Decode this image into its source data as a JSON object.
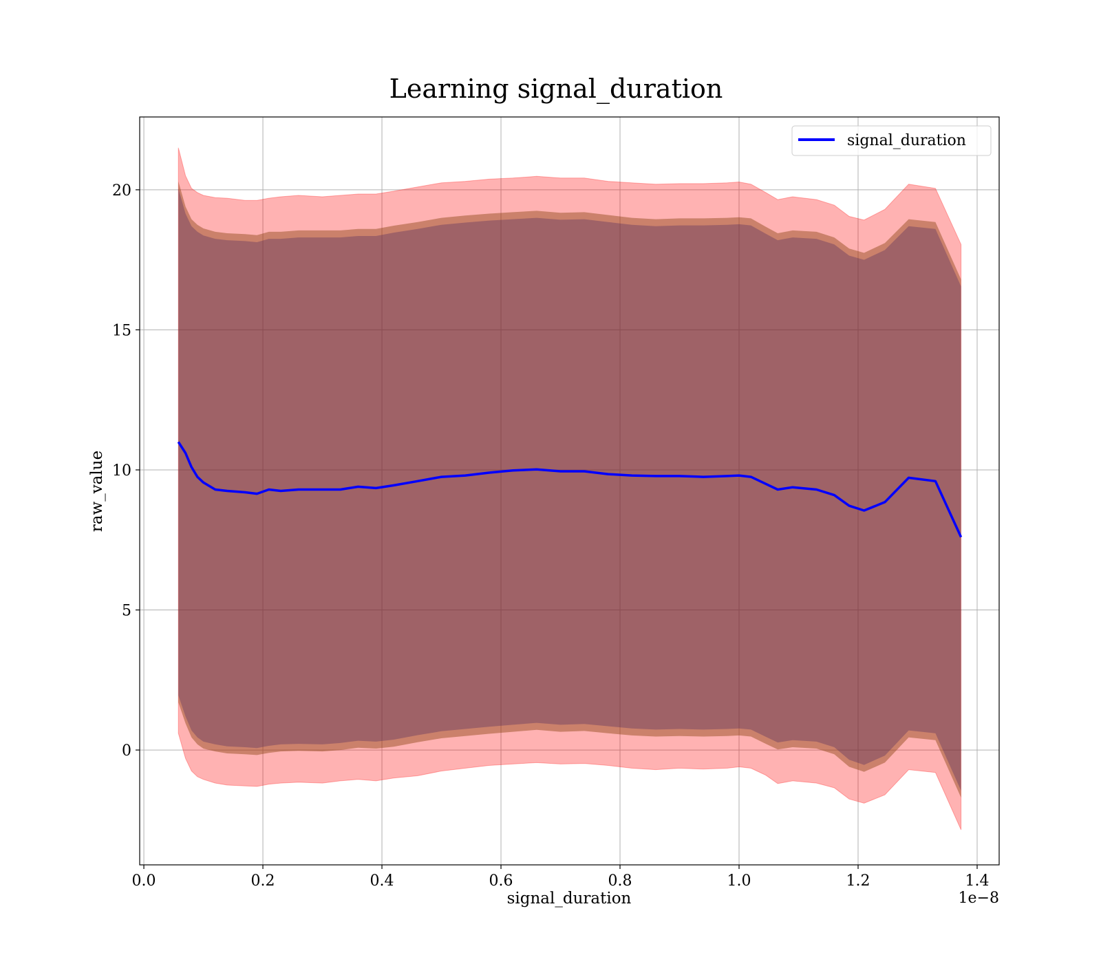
{
  "chart_data": {
    "type": "line",
    "title": "Learning signal_duration",
    "xlabel": "signal_duration",
    "ylabel": "raw_value",
    "x_offset_label": "1e−8",
    "xlim": [
      -0.007,
      1.437
    ],
    "ylim": [
      -4.1,
      22.6
    ],
    "xticks": [
      0.0,
      0.2,
      0.4,
      0.6,
      0.8,
      1.0,
      1.2,
      1.4
    ],
    "xtick_labels": [
      "0.0",
      "0.2",
      "0.4",
      "0.6",
      "0.8",
      "1.0",
      "1.2",
      "1.4"
    ],
    "yticks": [
      0,
      5,
      10,
      15,
      20
    ],
    "ytick_labels": [
      "0",
      "5",
      "10",
      "15",
      "20"
    ],
    "grid": true,
    "legend_position": "top-right",
    "colors": {
      "line": "#0000ff",
      "outer_band": "#ff0000",
      "inner_band_a": "#8b4513",
      "inner_band_b": "#3a1a60",
      "grid": "#b0b0b0"
    },
    "series": [
      {
        "name": "signal_duration",
        "x": [
          0.058,
          0.07,
          0.08,
          0.09,
          0.1,
          0.12,
          0.14,
          0.17,
          0.19,
          0.21,
          0.23,
          0.26,
          0.3,
          0.33,
          0.36,
          0.39,
          0.42,
          0.46,
          0.5,
          0.54,
          0.58,
          0.62,
          0.66,
          0.7,
          0.74,
          0.78,
          0.82,
          0.86,
          0.9,
          0.94,
          0.98,
          1.0,
          1.02,
          1.045,
          1.065,
          1.09,
          1.13,
          1.16,
          1.185,
          1.21,
          1.245,
          1.285,
          1.33,
          1.373
        ],
        "mean": [
          11.0,
          10.6,
          10.1,
          9.75,
          9.55,
          9.3,
          9.25,
          9.2,
          9.15,
          9.3,
          9.25,
          9.3,
          9.3,
          9.3,
          9.4,
          9.35,
          9.45,
          9.6,
          9.75,
          9.8,
          9.9,
          9.98,
          10.02,
          9.95,
          9.95,
          9.85,
          9.8,
          9.78,
          9.78,
          9.75,
          9.78,
          9.8,
          9.75,
          9.5,
          9.3,
          9.38,
          9.3,
          9.1,
          8.72,
          8.55,
          8.85,
          9.72,
          9.6,
          7.6
        ],
        "outer_upper": [
          21.5,
          20.5,
          20.05,
          19.9,
          19.8,
          19.72,
          19.7,
          19.62,
          19.62,
          19.7,
          19.75,
          19.8,
          19.75,
          19.8,
          19.85,
          19.85,
          19.95,
          20.1,
          20.25,
          20.3,
          20.38,
          20.42,
          20.48,
          20.42,
          20.42,
          20.3,
          20.25,
          20.2,
          20.22,
          20.22,
          20.25,
          20.28,
          20.2,
          19.9,
          19.65,
          19.75,
          19.65,
          19.45,
          19.05,
          18.92,
          19.3,
          20.2,
          20.05,
          18.05
        ],
        "outer_lower": [
          0.6,
          -0.3,
          -0.75,
          -0.95,
          -1.05,
          -1.18,
          -1.25,
          -1.28,
          -1.3,
          -1.22,
          -1.18,
          -1.15,
          -1.18,
          -1.1,
          -1.05,
          -1.1,
          -1.0,
          -0.92,
          -0.75,
          -0.65,
          -0.55,
          -0.5,
          -0.45,
          -0.5,
          -0.48,
          -0.55,
          -0.65,
          -0.7,
          -0.65,
          -0.68,
          -0.65,
          -0.6,
          -0.65,
          -0.9,
          -1.2,
          -1.1,
          -1.18,
          -1.35,
          -1.75,
          -1.9,
          -1.6,
          -0.7,
          -0.8,
          -2.85
        ],
        "inner_upper": [
          20.3,
          19.4,
          18.95,
          18.75,
          18.62,
          18.5,
          18.45,
          18.42,
          18.38,
          18.5,
          18.5,
          18.55,
          18.55,
          18.55,
          18.6,
          18.6,
          18.72,
          18.85,
          19.0,
          19.08,
          19.15,
          19.2,
          19.25,
          19.18,
          19.2,
          19.1,
          19.0,
          18.95,
          18.98,
          18.98,
          19.0,
          19.02,
          18.98,
          18.68,
          18.45,
          18.55,
          18.5,
          18.3,
          17.9,
          17.75,
          18.1,
          18.95,
          18.85,
          16.8
        ],
        "inner_lower": [
          1.7,
          0.95,
          0.45,
          0.2,
          0.05,
          -0.05,
          -0.12,
          -0.15,
          -0.18,
          -0.1,
          -0.05,
          -0.03,
          -0.05,
          0.0,
          0.08,
          0.05,
          0.12,
          0.28,
          0.42,
          0.5,
          0.58,
          0.65,
          0.72,
          0.65,
          0.68,
          0.6,
          0.52,
          0.48,
          0.5,
          0.48,
          0.5,
          0.52,
          0.48,
          0.22,
          0.02,
          0.1,
          0.05,
          -0.15,
          -0.6,
          -0.78,
          -0.45,
          0.45,
          0.35,
          -1.7
        ]
      }
    ]
  }
}
